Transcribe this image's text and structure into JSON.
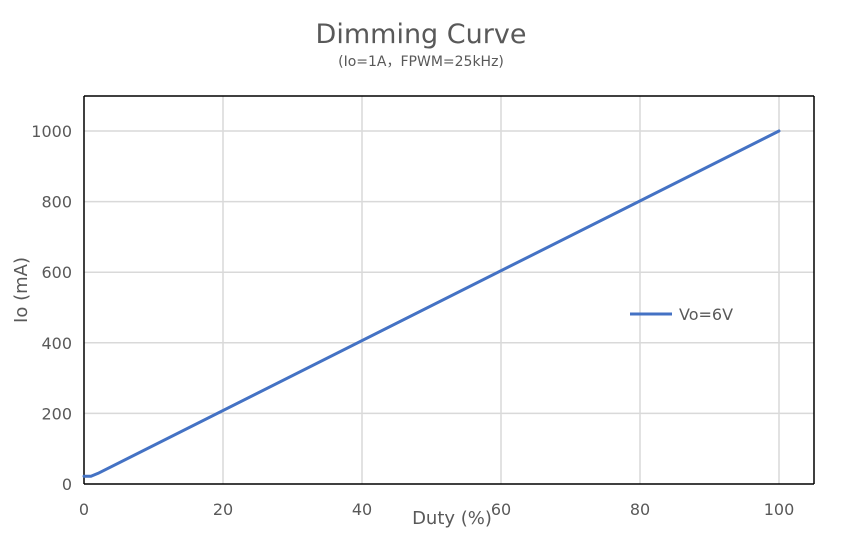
{
  "chart_data": {
    "type": "line",
    "title": "Dimming Curve",
    "subtitle": "(Io=1A，FPWM=25kHz)",
    "xlabel": "Duty (%)",
    "ylabel": "Io (mA)",
    "xlim": [
      0,
      100
    ],
    "ylim": [
      0,
      1100
    ],
    "xticks": [
      0,
      20,
      40,
      60,
      80,
      100
    ],
    "yticks": [
      0,
      200,
      400,
      600,
      800,
      1000
    ],
    "grid": true,
    "legend_position": "right",
    "series": [
      {
        "name": "Vo=6V",
        "color": "#4472C4",
        "x": [
          0,
          1,
          2,
          100
        ],
        "y": [
          22,
          22,
          30,
          1000
        ]
      }
    ]
  }
}
